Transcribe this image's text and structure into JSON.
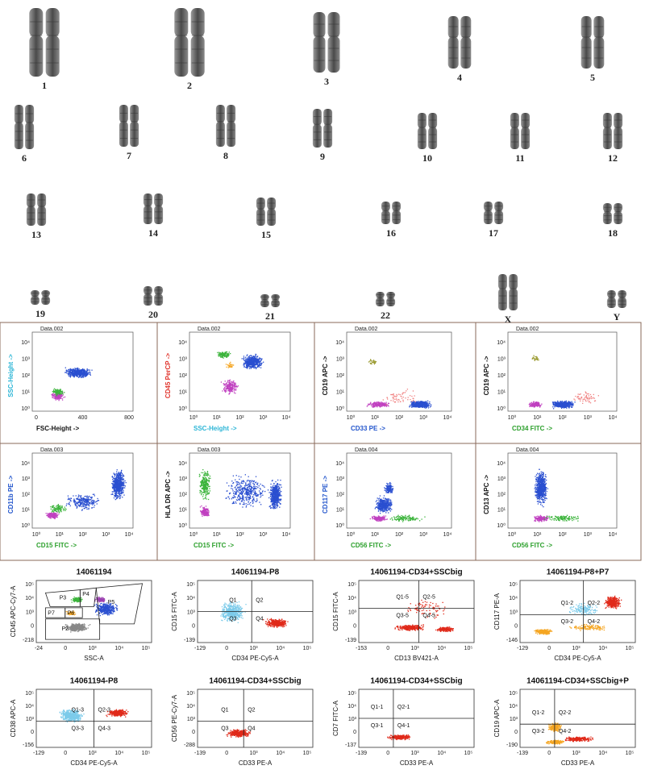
{
  "karyotype": {
    "labels": [
      "1",
      "2",
      "3",
      "4",
      "5",
      "6",
      "7",
      "8",
      "9",
      "10",
      "11",
      "12",
      "13",
      "14",
      "15",
      "16",
      "17",
      "18",
      "19",
      "20",
      "21",
      "22",
      "X",
      "Y"
    ]
  },
  "flow_a": [
    {
      "title": "Data.002",
      "ylabel": "SSC-Height ->",
      "ylabel_color": "#2bb5d6",
      "xlabel": "FSC-Height ->",
      "xlabel_color": "#111111",
      "xticks": [
        "0",
        "400",
        "800"
      ],
      "yticks": [
        "10⁰",
        "10¹",
        "10²",
        "10³",
        "10⁴"
      ]
    },
    {
      "title": "Data.002",
      "ylabel": "CD45 PerCP ->",
      "ylabel_color": "#e0322a",
      "xlabel": "SSC-Height ->",
      "xlabel_color": "#2bb5d6",
      "xticks": [
        "10⁰",
        "10¹",
        "10²",
        "10³",
        "10⁴"
      ],
      "yticks": [
        "10⁰",
        "10¹",
        "10²",
        "10³",
        "10⁴"
      ]
    },
    {
      "title": "Data.002",
      "ylabel": "CD19 APC ->",
      "ylabel_color": "#111111",
      "xlabel": "CD33 PE ->",
      "xlabel_color": "#2255cc",
      "xticks": [
        "10⁰",
        "10¹",
        "10²",
        "10³",
        "10⁴"
      ],
      "yticks": [
        "10⁰",
        "10¹",
        "10²",
        "10³",
        "10⁴"
      ]
    },
    {
      "title": "Data.002",
      "ylabel": "CD19 APC ->",
      "ylabel_color": "#111111",
      "xlabel": "CD34 FITC ->",
      "xlabel_color": "#2ca02c",
      "xticks": [
        "10⁰",
        "10¹",
        "10²",
        "10³",
        "10⁴"
      ],
      "yticks": [
        "10⁰",
        "10¹",
        "10²",
        "10³",
        "10⁴"
      ]
    },
    {
      "title": "Data.003",
      "ylabel": "CD11b PE ->",
      "ylabel_color": "#2255cc",
      "xlabel": "CD15 FITC ->",
      "xlabel_color": "#2ca02c",
      "xticks": [
        "10⁰",
        "10¹",
        "10²",
        "10³",
        "10⁴"
      ],
      "yticks": [
        "10⁰",
        "10¹",
        "10²",
        "10³",
        "10⁴"
      ]
    },
    {
      "title": "Data.003",
      "ylabel": "HLA DR APC ->",
      "ylabel_color": "#111111",
      "xlabel": "CD15 FITC ->",
      "xlabel_color": "#2ca02c",
      "xticks": [
        "10⁰",
        "10¹",
        "10²",
        "10³",
        "10⁴"
      ],
      "yticks": [
        "10⁰",
        "10¹",
        "10²",
        "10³",
        "10⁴"
      ]
    },
    {
      "title": "Data.004",
      "ylabel": "CD117 PE ->",
      "ylabel_color": "#2255cc",
      "xlabel": "CD56 FITC ->",
      "xlabel_color": "#2ca02c",
      "xticks": [
        "10⁰",
        "10¹",
        "10²",
        "10³",
        "10⁴"
      ],
      "yticks": [
        "10⁰",
        "10¹",
        "10²",
        "10³",
        "10⁴"
      ]
    },
    {
      "title": "Data.004",
      "ylabel": "CD13 APC ->",
      "ylabel_color": "#111111",
      "xlabel": "CD56 FITC ->",
      "xlabel_color": "#2ca02c",
      "xticks": [
        "10⁰",
        "10¹",
        "10²",
        "10³",
        "10⁴"
      ],
      "yticks": [
        "10⁰",
        "10¹",
        "10²",
        "10³",
        "10⁴"
      ]
    }
  ],
  "flow_b": [
    {
      "title": "14061194",
      "ylabel": "CD45 APC-Cy7-A",
      "xlabel": "SSC-A",
      "labels": [
        "P3",
        "P4",
        "P5",
        "P7",
        "P6",
        "P2"
      ],
      "xticks": [
        "-24",
        "0",
        "10³",
        "10⁴",
        "10⁵"
      ],
      "yticks": [
        "-218",
        "0",
        "10³",
        "10⁴",
        "10⁵"
      ]
    },
    {
      "title": "14061194-P8",
      "ylabel": "CD15 FITC-A",
      "xlabel": "CD34 PE-Cy5-A",
      "labels": [
        "Q1",
        "Q2",
        "Q3",
        "Q4"
      ],
      "xticks": [
        "-129",
        "0",
        "10³",
        "10⁴",
        "10⁵"
      ],
      "yticks": [
        "-139",
        "0",
        "10³",
        "10⁴",
        "10⁵"
      ]
    },
    {
      "title": "14061194-CD34+SSCbig",
      "ylabel": "CD15 FITC-A",
      "xlabel": "CD13 BV421-A",
      "labels": [
        "Q1-5",
        "Q2-5",
        "Q3-5",
        "Q4-5"
      ],
      "xticks": [
        "-153",
        "0",
        "10³",
        "10⁴",
        "10⁵"
      ],
      "yticks": [
        "-139",
        "0",
        "10³",
        "10⁴",
        "10⁵"
      ]
    },
    {
      "title": "14061194-P8+P7",
      "ylabel": "CD117 PE-A",
      "xlabel": "CD34 PE-Cy5-A",
      "labels": [
        "Q1-2",
        "Q2-2",
        "Q3-2",
        "Q4-2"
      ],
      "xticks": [
        "-129",
        "0",
        "10³",
        "10⁴",
        "10⁵"
      ],
      "yticks": [
        "-146",
        "0",
        "10³",
        "10⁴",
        "10⁵"
      ]
    },
    {
      "title": "14061194-P8",
      "ylabel": "CD38 APC-A",
      "xlabel": "CD34 PE-Cy5-A",
      "labels": [
        "Q1-3",
        "Q2-3",
        "Q3-3",
        "Q4-3"
      ],
      "xticks": [
        "-129",
        "0",
        "10³",
        "10⁴",
        "10⁵"
      ],
      "yticks": [
        "-156",
        "0",
        "10³",
        "10⁴",
        "10⁵"
      ]
    },
    {
      "title": "14061194-CD34+SSCbig",
      "ylabel": "CD56 PE-Cy7-A",
      "xlabel": "CD33 PE-A",
      "labels": [
        "Q1",
        "Q2",
        "Q3",
        "Q4"
      ],
      "xticks": [
        "-139",
        "0",
        "10³",
        "10⁴",
        "10⁵"
      ],
      "yticks": [
        "-288",
        "0",
        "10³",
        "10⁴",
        "10⁵"
      ]
    },
    {
      "title": "14061194-CD34+SSCbig",
      "ylabel": "CD7 FITC-A",
      "xlabel": "CD33 PE-A",
      "labels": [
        "Q1-1",
        "Q2-1",
        "Q3-1",
        "Q4-1"
      ],
      "xticks": [
        "-139",
        "0",
        "10³",
        "10⁴",
        "10⁵"
      ],
      "yticks": [
        "-137",
        "0",
        "10³",
        "10⁴",
        "10⁵"
      ]
    },
    {
      "title": "14061194-CD34+SSCbig+P",
      "ylabel": "CD19 APC-A",
      "xlabel": "CD33 PE-A",
      "labels": [
        "Q1-2",
        "Q2-2",
        "Q3-2",
        "Q4-2"
      ],
      "xticks": [
        "-139",
        "0",
        "10³",
        "10⁴",
        "10⁵"
      ],
      "yticks": [
        "-190",
        "0",
        "10³",
        "10⁴",
        "10⁵"
      ]
    }
  ]
}
